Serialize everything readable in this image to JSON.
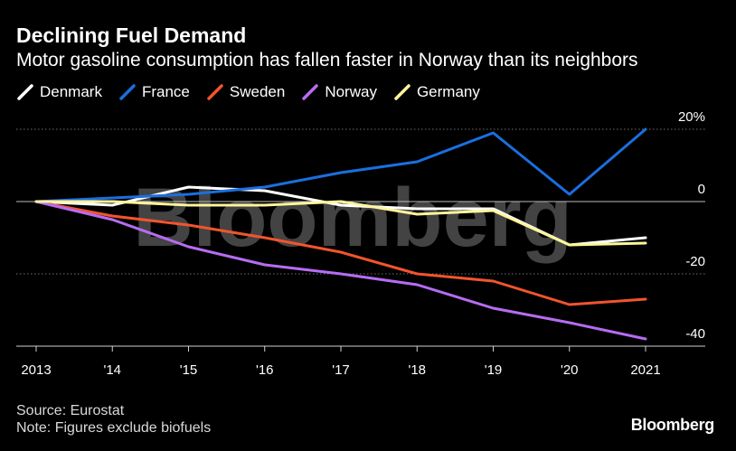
{
  "title": "Declining Fuel Demand",
  "subtitle": "Motor gasoline consumption has fallen faster in Norway than its neighbors",
  "source": "Source: Eurostat",
  "note": "Note: Figures exclude biofuels",
  "brand": "Bloomberg",
  "watermark": "Bloomberg",
  "chart_data": {
    "type": "line",
    "x": [
      "2013",
      "'14",
      "'15",
      "'16",
      "'17",
      "'18",
      "'19",
      "'20",
      "2021"
    ],
    "ylim": [
      -40,
      20
    ],
    "yticks": [
      {
        "value": 20,
        "label": "20%"
      },
      {
        "value": 0,
        "label": "0"
      },
      {
        "value": -20,
        "label": "-20"
      },
      {
        "value": -40,
        "label": "-40"
      }
    ],
    "legend_position": "top-left",
    "grid": "dotted horizontal",
    "series": [
      {
        "name": "Denmark",
        "color": "#ffffff",
        "values": [
          0,
          -1,
          4,
          3,
          -1,
          -2,
          -2,
          -12,
          -10
        ]
      },
      {
        "name": "France",
        "color": "#1a6fe0",
        "values": [
          0,
          1,
          2,
          4,
          8,
          11,
          19,
          2,
          20
        ]
      },
      {
        "name": "Sweden",
        "color": "#f2542d",
        "values": [
          0,
          -4,
          -6.5,
          -10,
          -14,
          -20,
          -22,
          -28.5,
          -27
        ]
      },
      {
        "name": "Norway",
        "color": "#b76cf3",
        "values": [
          0,
          -5,
          -12.5,
          -17.5,
          -20,
          -23,
          -29.5,
          -33.5,
          -38
        ]
      },
      {
        "name": "Germany",
        "color": "#fff59a",
        "values": [
          0,
          0,
          -1,
          -1,
          0,
          -3.5,
          -2.5,
          -12,
          -11.5
        ]
      }
    ]
  }
}
